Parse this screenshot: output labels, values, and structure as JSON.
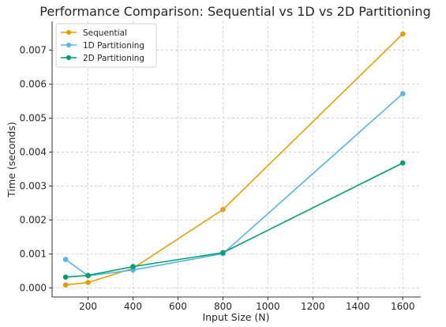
{
  "chart_data": {
    "type": "line",
    "title": "Performance Comparison: Sequential vs 1D vs 2D Partitioning",
    "xlabel": "Input Size (N)",
    "ylabel": "Time (seconds)",
    "xlim": [
      40,
      1680
    ],
    "ylim": [
      -0.000265,
      0.00785
    ],
    "xticks": [
      200,
      400,
      600,
      800,
      1000,
      1200,
      1400,
      1600
    ],
    "yticks": [
      0.0,
      0.001,
      0.002,
      0.003,
      0.004,
      0.005,
      0.006,
      0.007
    ],
    "ytick_labels": [
      "0.000",
      "0.001",
      "0.002",
      "0.003",
      "0.004",
      "0.005",
      "0.006",
      "0.007"
    ],
    "grid": true,
    "legend_position": "top-left",
    "x": [
      100,
      200,
      400,
      800,
      1600
    ],
    "series": [
      {
        "name": "Sequential",
        "color": "#E69F00",
        "values": [
          9e-05,
          0.00016,
          0.00058,
          0.00231,
          0.00748
        ]
      },
      {
        "name": "1D Partitioning",
        "color": "#56B4E9",
        "values": [
          0.00084,
          0.00036,
          0.00053,
          0.00101,
          0.00572
        ]
      },
      {
        "name": "2D Partitioning",
        "color": "#009E73",
        "values": [
          0.00032,
          0.00037,
          0.00063,
          0.00104,
          0.00368
        ]
      }
    ]
  }
}
